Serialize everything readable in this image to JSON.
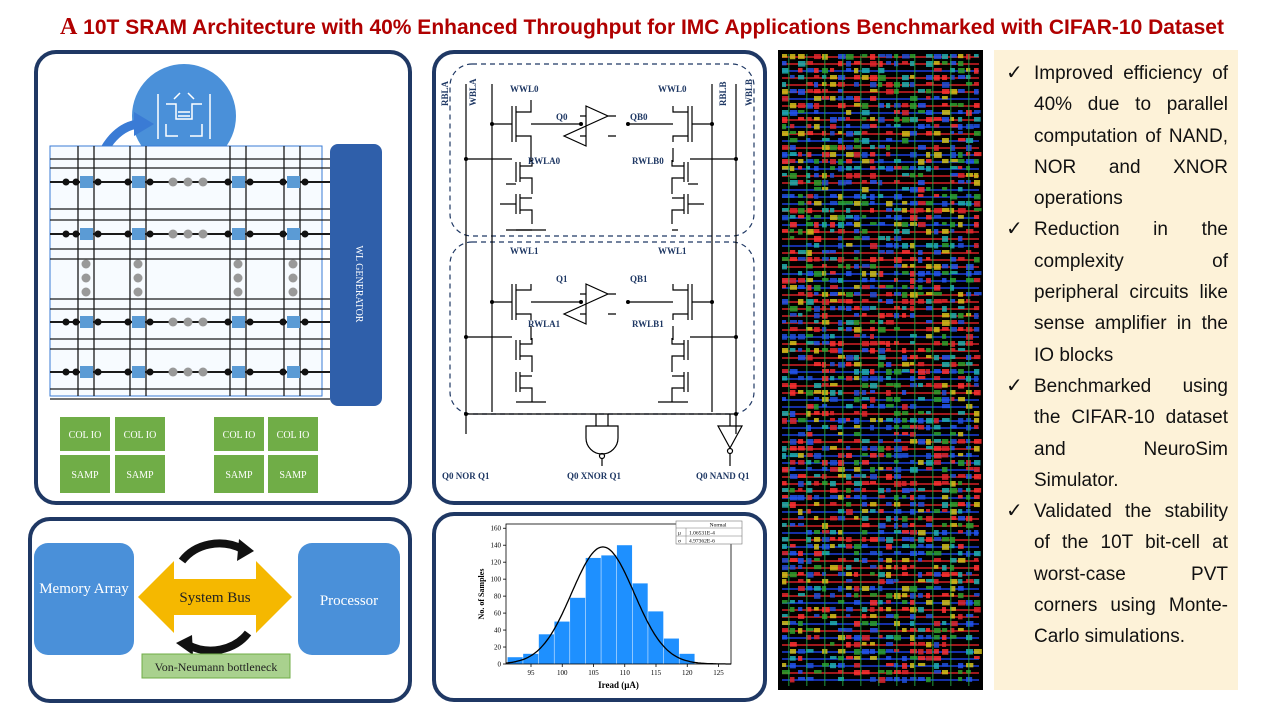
{
  "title": {
    "first_letter": "A",
    "rest": " 10T SRAM Architecture with 40% Enhanced Throughput for IMC Applications Benchmarked with CIFAR-10 Dataset"
  },
  "array_panel": {
    "generator_label": "WL GENERATOR",
    "col_io_label": "COL IO",
    "samp_label": "SAMP"
  },
  "circuit_panel": {
    "rbla": "RBLA",
    "wbla": "WBLA",
    "rblb": "RBLB",
    "wblb": "WBLB",
    "wwl0": "WWL0",
    "wwl1": "WWL1",
    "q0": "Q0",
    "qb0": "QB0",
    "q1": "Q1",
    "qb1": "QB1",
    "rwla0": "RWLA0",
    "rwlb0": "RWLB0",
    "rwla1": "RWLA1",
    "rwlb1": "RWLB1",
    "nor_out": "Q0 NOR Q1",
    "xnor_out": "Q0 XNOR Q1",
    "nand_out": "Q0 NAND Q1"
  },
  "bottleneck_panel": {
    "memory_label": "Memory Array",
    "bus_label": "System Bus",
    "processor_label": "Processor",
    "caption": "Von-Neumann bottleneck"
  },
  "chart_data": {
    "type": "bar",
    "x": [
      92.5,
      95,
      97.5,
      100,
      102.5,
      105,
      107.5,
      110,
      112.5,
      115,
      117.5,
      120
    ],
    "values": [
      8,
      12,
      35,
      50,
      78,
      125,
      128,
      140,
      95,
      62,
      30,
      12
    ],
    "fit_curve": "normal",
    "xlabel": "Iread (µA)",
    "ylabel": "No. of Samples",
    "xlim": [
      91,
      127
    ],
    "ylim": [
      0,
      165
    ],
    "xticks": [
      "95",
      "100",
      "105",
      "110",
      "115",
      "120",
      "125"
    ],
    "yticks": [
      "0",
      "20",
      "40",
      "60",
      "80",
      "100",
      "120",
      "140",
      "160"
    ],
    "grid": false,
    "legend": {
      "header": "Normal",
      "rows": [
        {
          "sym": "μ",
          "val": "1.06531E-4"
        },
        {
          "sym": "σ",
          "val": "4.97362E-6"
        }
      ]
    },
    "bar_color": "#1e90ff"
  },
  "notes": [
    "Improved efficiency of 40% due to parallel computation of NAND, NOR and XNOR operations",
    "Reduction in the complexity of peripheral circuits like sense amplifier in the IO blocks",
    "Benchmarked using the CIFAR-10 dataset and NeuroSim Simulator.",
    "Validated the stability of the 10T bit-cell at worst-case PVT corners using Monte-Carlo simulations."
  ],
  "colors": {
    "title": "#b00000",
    "panel_border": "#1f3864",
    "accent_blue": "#3a7bd5",
    "io_green": "#70ad47",
    "notes_bg": "#fdf2d8"
  }
}
